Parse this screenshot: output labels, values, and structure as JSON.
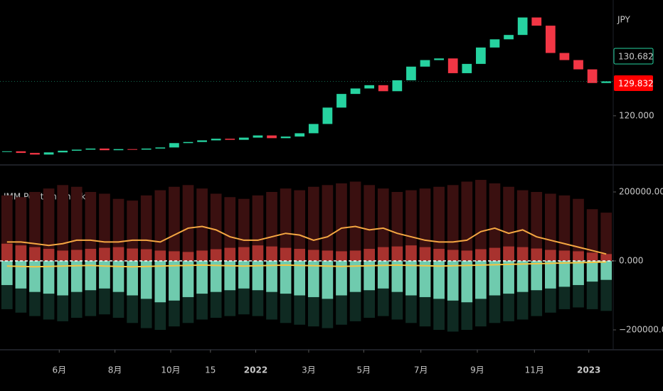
{
  "chart_data": [
    {
      "type": "candlestick",
      "currency": "JPY",
      "annotations": [
        "130.682",
        "129.832"
      ],
      "up_color": "#26d3a0",
      "down_color": "#f23645",
      "ylim": [
        111,
        141.2
      ],
      "yticks": [
        {
          "value": 120,
          "label": "120.000"
        }
      ],
      "close": [
        113.5,
        113.2,
        112.9,
        113.3,
        113.6,
        113.8,
        114.0,
        113.7,
        113.9,
        113.8,
        114.0,
        114.2,
        115.0,
        115.2,
        115.5,
        115.8,
        115.6,
        116.0,
        116.4,
        115.9,
        116.2,
        116.8,
        118.5,
        121.5,
        124.0,
        125.0,
        125.6,
        124.5,
        126.5,
        129.0,
        130.2,
        130.5,
        127.8,
        129.5,
        132.5,
        134.0,
        134.8,
        138.0,
        136.5,
        131.5,
        130.2,
        128.5,
        126.0,
        126.3
      ]
    },
    {
      "type": "bar",
      "title": "IMM Position Checker",
      "ylim": [
        -257700,
        272200
      ],
      "yticks": [
        {
          "value": 200000,
          "label": "200000.000"
        },
        {
          "value": 0,
          "label": "0.000"
        },
        {
          "value": -200000,
          "label": "−200000.000"
        }
      ],
      "xlim": [
        -0.5,
        43.5
      ],
      "xticks": [
        {
          "value": 3.75,
          "label": "6月"
        },
        {
          "value": 7.75,
          "label": "8月"
        },
        {
          "value": 11.75,
          "label": "10月"
        },
        {
          "value": 14.6,
          "label": "15"
        },
        {
          "value": 17.85,
          "label": "2022"
        },
        {
          "value": 21.65,
          "label": "3月"
        },
        {
          "value": 25.6,
          "label": "5月"
        },
        {
          "value": 29.7,
          "label": "7月"
        },
        {
          "value": 33.75,
          "label": "9月"
        },
        {
          "value": 37.85,
          "label": "11月"
        },
        {
          "value": 41.75,
          "label": "2023"
        }
      ],
      "series": [
        {
          "color": "#3a1010",
          "values": [
            190000,
            185000,
            200000,
            210000,
            220000,
            215000,
            200000,
            195000,
            180000,
            175000,
            190000,
            205000,
            215000,
            220000,
            210000,
            195000,
            185000,
            180000,
            190000,
            200000,
            210000,
            205000,
            215000,
            220000,
            225000,
            230000,
            220000,
            210000,
            200000,
            205000,
            210000,
            215000,
            220000,
            230000,
            235000,
            225000,
            215000,
            205000,
            200000,
            195000,
            190000,
            180000,
            150000,
            140000
          ]
        },
        {
          "color": "#0f2a22",
          "values": [
            -140000,
            -150000,
            -160000,
            -170000,
            -175000,
            -165000,
            -160000,
            -155000,
            -165000,
            -180000,
            -195000,
            -200000,
            -190000,
            -180000,
            -170000,
            -165000,
            -160000,
            -155000,
            -160000,
            -170000,
            -180000,
            -185000,
            -190000,
            -195000,
            -185000,
            -175000,
            -165000,
            -160000,
            -170000,
            -180000,
            -190000,
            -200000,
            -205000,
            -200000,
            -190000,
            -180000,
            -175000,
            -170000,
            -160000,
            -150000,
            -140000,
            -135000,
            -140000,
            -145000
          ]
        },
        {
          "color": "#a8322e",
          "values": [
            50000,
            45000,
            40000,
            35000,
            30000,
            32000,
            35000,
            38000,
            40000,
            36000,
            34000,
            30000,
            28000,
            26000,
            30000,
            34000,
            38000,
            40000,
            45000,
            42000,
            38000,
            35000,
            32000,
            30000,
            28000,
            30000,
            35000,
            40000,
            42000,
            45000,
            40000,
            35000,
            32000,
            30000,
            34000,
            38000,
            42000,
            40000,
            36000,
            32000,
            30000,
            28000,
            24000,
            20000
          ]
        },
        {
          "color": "#6fcbae",
          "values": [
            -70000,
            -80000,
            -90000,
            -95000,
            -100000,
            -90000,
            -85000,
            -80000,
            -90000,
            -100000,
            -110000,
            -120000,
            -115000,
            -105000,
            -95000,
            -90000,
            -85000,
            -80000,
            -85000,
            -90000,
            -95000,
            -100000,
            -105000,
            -110000,
            -100000,
            -90000,
            -85000,
            -80000,
            -90000,
            -100000,
            -105000,
            -110000,
            -115000,
            -120000,
            -110000,
            -100000,
            -95000,
            -90000,
            -85000,
            -80000,
            -75000,
            -70000,
            -60000,
            -55000
          ]
        },
        {
          "color": "#f5a742",
          "line": true,
          "values": [
            55000,
            55000,
            50000,
            45000,
            50000,
            60000,
            60000,
            55000,
            55000,
            60000,
            60000,
            55000,
            75000,
            95000,
            100000,
            90000,
            70000,
            60000,
            60000,
            70000,
            80000,
            75000,
            60000,
            70000,
            95000,
            100000,
            90000,
            95000,
            80000,
            70000,
            60000,
            55000,
            55000,
            60000,
            85000,
            95000,
            80000,
            90000,
            70000,
            60000,
            50000,
            40000,
            30000,
            20000
          ]
        },
        {
          "color": "#f5c542",
          "line": true,
          "values": [
            -15000,
            -16000,
            -17000,
            -16000,
            -15000,
            -14000,
            -13000,
            -15000,
            -16000,
            -17000,
            -16000,
            -15000,
            -14000,
            -13000,
            -12000,
            -13000,
            -14000,
            -15000,
            -14000,
            -13000,
            -12000,
            -13000,
            -14000,
            -15000,
            -16000,
            -15000,
            -14000,
            -13000,
            -12000,
            -13000,
            -14000,
            -15000,
            -14000,
            -13000,
            -12000,
            -11000,
            -10000,
            -9000,
            -8000,
            -7000,
            -6000,
            -5000,
            -4000,
            -3000
          ]
        }
      ]
    }
  ]
}
